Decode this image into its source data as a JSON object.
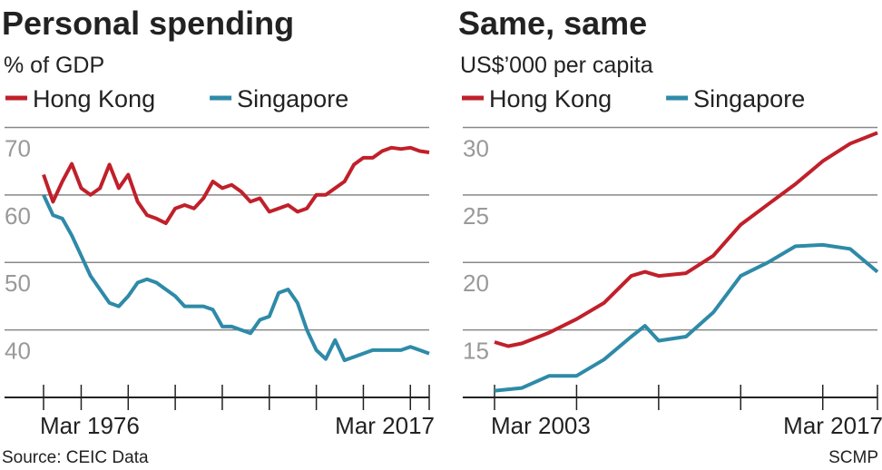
{
  "chart_data": [
    {
      "type": "line",
      "title": "Personal spending",
      "subtitle": "% of GDP",
      "x": [
        1976,
        1977,
        1978,
        1979,
        1980,
        1981,
        1982,
        1983,
        1984,
        1985,
        1986,
        1987,
        1988,
        1989,
        1990,
        1991,
        1992,
        1993,
        1994,
        1995,
        1996,
        1997,
        1998,
        1999,
        2000,
        2001,
        2002,
        2003,
        2004,
        2005,
        2006,
        2007,
        2008,
        2009,
        2010,
        2011,
        2012,
        2013,
        2014,
        2015,
        2016,
        2017
      ],
      "series": [
        {
          "name": "Hong Kong",
          "color": "#c0202a",
          "values": [
            63,
            59,
            62,
            64.6,
            61,
            60,
            61,
            64.5,
            61,
            63,
            59,
            57,
            56.5,
            55.8,
            58,
            58.5,
            58,
            59.5,
            62,
            61,
            61.5,
            60.5,
            59,
            59.5,
            57.5,
            58,
            58.5,
            57.5,
            58,
            60,
            60,
            61,
            62,
            64.5,
            65.5,
            65.5,
            66.5,
            67,
            66.8,
            67,
            66.5,
            66.3
          ]
        },
        {
          "name": "Singapore",
          "color": "#2e8aa8",
          "values": [
            60,
            57,
            56.5,
            54,
            51,
            48,
            46,
            44,
            43.5,
            45,
            47,
            47.5,
            47,
            46,
            45,
            43.5,
            43.5,
            43.5,
            43,
            40.5,
            40.5,
            40,
            39.5,
            41.5,
            42,
            45.5,
            46,
            44,
            40,
            37,
            35.7,
            38.5,
            35.5,
            36,
            36.5,
            37,
            37,
            37,
            37,
            37.5,
            37,
            36.5
          ]
        }
      ],
      "xlim": [
        1976,
        2017
      ],
      "xticks": [
        1976,
        1980,
        1985,
        1990,
        1995,
        2000,
        2005,
        2010,
        2015,
        2017
      ],
      "xtick_labels": [
        {
          "value": 1976,
          "label": "Mar 1976"
        },
        {
          "value": 2017,
          "label": "Mar 2017"
        }
      ],
      "ylim": [
        30,
        71
      ],
      "yticks": [
        40,
        50,
        60,
        70
      ]
    },
    {
      "type": "line",
      "title": "Same, same",
      "subtitle": "US$’000 per capita",
      "x": [
        2003,
        2003.5,
        2004,
        2005,
        2006,
        2007,
        2008,
        2008.5,
        2009,
        2010,
        2011,
        2012,
        2013,
        2014,
        2015,
        2016,
        2017
      ],
      "series": [
        {
          "name": "Hong Kong",
          "color": "#c0202a",
          "values": [
            14.1,
            13.8,
            14,
            14.8,
            15.8,
            17,
            19,
            19.3,
            19,
            19.2,
            20.5,
            22.8,
            24.3,
            25.8,
            27.5,
            28.8,
            29.6
          ]
        },
        {
          "name": "Singapore",
          "color": "#2e8aa8",
          "values": [
            10.5,
            10.6,
            10.7,
            11.6,
            11.6,
            12.8,
            14.5,
            15.3,
            14.2,
            14.5,
            16.3,
            19,
            20,
            21.2,
            21.3,
            21,
            19.3
          ]
        }
      ],
      "xlim": [
        2003,
        2017
      ],
      "xticks": [
        2003,
        2006,
        2009,
        2012,
        2015,
        2017
      ],
      "xtick_labels": [
        {
          "value": 2003,
          "label": "Mar 2003"
        },
        {
          "value": 2017,
          "label": "Mar 2017"
        }
      ],
      "ylim": [
        10,
        30.5
      ],
      "yticks": [
        15,
        20,
        25,
        30
      ]
    }
  ],
  "source": "Source: CEIC Data",
  "credit": "SCMP"
}
